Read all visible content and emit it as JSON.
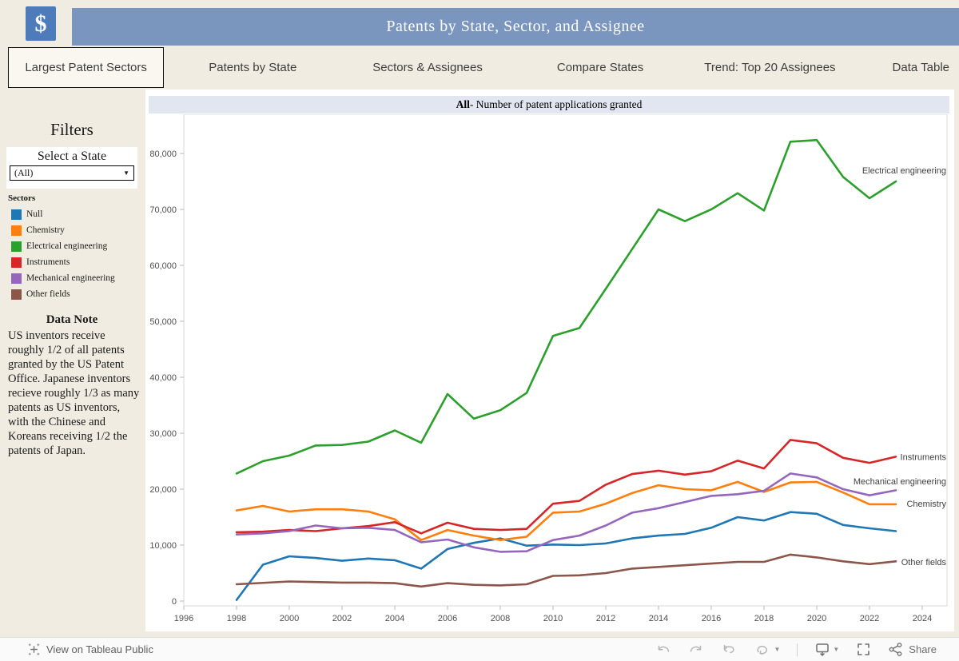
{
  "header": {
    "logo_glyph": "$",
    "title": "Patents by State, Sector, and Assignee"
  },
  "tabs": [
    {
      "label": "Largest Patent Sectors",
      "selected": true
    },
    {
      "label": "Patents by State",
      "selected": false
    },
    {
      "label": "Sectors & Assignees",
      "selected": false
    },
    {
      "label": "Compare States",
      "selected": false
    },
    {
      "label": "Trend: Top 20 Assignees",
      "selected": false
    },
    {
      "label": "Data Table",
      "selected": false
    }
  ],
  "sidebar": {
    "filters_title": "Filters",
    "state_filter": {
      "label": "Select a State",
      "value": "(All)"
    },
    "sectors_legend": {
      "title": "Sectors",
      "items": [
        {
          "label": "Null",
          "color": "#1f77b4"
        },
        {
          "label": "Chemistry",
          "color": "#ff7f0e"
        },
        {
          "label": "Electrical engineering",
          "color": "#2ca02c"
        },
        {
          "label": "Instruments",
          "color": "#d62728"
        },
        {
          "label": "Mechanical engineering",
          "color": "#9467bd"
        },
        {
          "label": "Other fields",
          "color": "#8c564b"
        }
      ]
    },
    "data_note": {
      "title": "Data Note",
      "body": "US inventors receive roughly 1/2 of all patents granted by the US Patent Office. Japanese inventors recieve roughly 1/3 as many patents as US inventors, with the Chinese and Koreans receiving 1/2 the patents of Japan."
    }
  },
  "chart": {
    "title_bold": "All",
    "title_rest": " - Number of patent applications granted"
  },
  "chart_data": {
    "type": "line",
    "title": "All - Number of patent applications granted",
    "xlabel": "",
    "ylabel": "",
    "xlim": [
      1996,
      2024.9
    ],
    "ylim": [
      0,
      87000
    ],
    "grid": false,
    "legend_position": "line-end-labels",
    "x_ticks": [
      1996,
      1998,
      2000,
      2002,
      2004,
      2006,
      2008,
      2010,
      2012,
      2014,
      2016,
      2018,
      2020,
      2022,
      2024
    ],
    "y_ticks": [
      0,
      10000,
      20000,
      30000,
      40000,
      50000,
      60000,
      70000,
      80000
    ],
    "x": [
      1998,
      1999,
      2000,
      2001,
      2002,
      2003,
      2004,
      2005,
      2006,
      2007,
      2008,
      2009,
      2010,
      2011,
      2012,
      2013,
      2014,
      2015,
      2016,
      2017,
      2018,
      2019,
      2020,
      2021,
      2022,
      2023
    ],
    "series": [
      {
        "name": "Null",
        "color": "#1f77b4",
        "label": null,
        "label_value": null,
        "values": [
          200,
          6500,
          8000,
          7700,
          7200,
          7600,
          7300,
          5800,
          9300,
          10400,
          11200,
          9900,
          10100,
          10000,
          10300,
          11200,
          11700,
          12000,
          13100,
          15000,
          14400,
          15900,
          15600,
          13600,
          13000,
          12500
        ]
      },
      {
        "name": "Chemistry",
        "color": "#ff7f0e",
        "label": "Chemistry",
        "label_value": 17400,
        "values": [
          16200,
          17000,
          16000,
          16400,
          16400,
          16000,
          14600,
          10900,
          12700,
          11700,
          10900,
          11500,
          15800,
          16000,
          17400,
          19300,
          20700,
          20000,
          19800,
          21300,
          19500,
          21200,
          21300,
          19400,
          17300,
          17300
        ]
      },
      {
        "name": "Electrical engineering",
        "color": "#2ca02c",
        "label": "Electrical engineering",
        "label_value": 77000,
        "values": [
          22800,
          25000,
          26000,
          27800,
          27900,
          28500,
          30500,
          28300,
          37000,
          32600,
          34100,
          37200,
          47400,
          48800,
          55800,
          62900,
          70000,
          67900,
          70000,
          72900,
          69800,
          82100,
          82400,
          75800,
          72000,
          75000
        ]
      },
      {
        "name": "Instruments",
        "color": "#d62728",
        "label": "Instruments",
        "label_value": 25800,
        "values": [
          12300,
          12400,
          12700,
          12500,
          13000,
          13400,
          14100,
          12100,
          14000,
          12900,
          12700,
          12900,
          17400,
          17900,
          20800,
          22700,
          23300,
          22600,
          23200,
          25100,
          23700,
          28800,
          28200,
          25600,
          24700,
          25800
        ]
      },
      {
        "name": "Mechanical engineering",
        "color": "#9467bd",
        "label": "Mechanical engineering",
        "label_value": 21400,
        "values": [
          11900,
          12100,
          12500,
          13500,
          13000,
          13100,
          12700,
          10500,
          11000,
          9600,
          8800,
          8900,
          10900,
          11700,
          13500,
          15800,
          16600,
          17700,
          18800,
          19100,
          19700,
          22800,
          22100,
          20000,
          18900,
          19800
        ]
      },
      {
        "name": "Other fields",
        "color": "#8c564b",
        "label": "Other fields",
        "label_value": 7000,
        "values": [
          3000,
          3250,
          3500,
          3400,
          3300,
          3300,
          3200,
          2600,
          3200,
          2900,
          2800,
          3000,
          4500,
          4600,
          5000,
          5800,
          6100,
          6400,
          6700,
          7000,
          7000,
          8300,
          7800,
          7100,
          6600,
          7100
        ]
      }
    ]
  },
  "toolbar": {
    "view_text": "View on Tableau Public",
    "share_label": "Share"
  }
}
